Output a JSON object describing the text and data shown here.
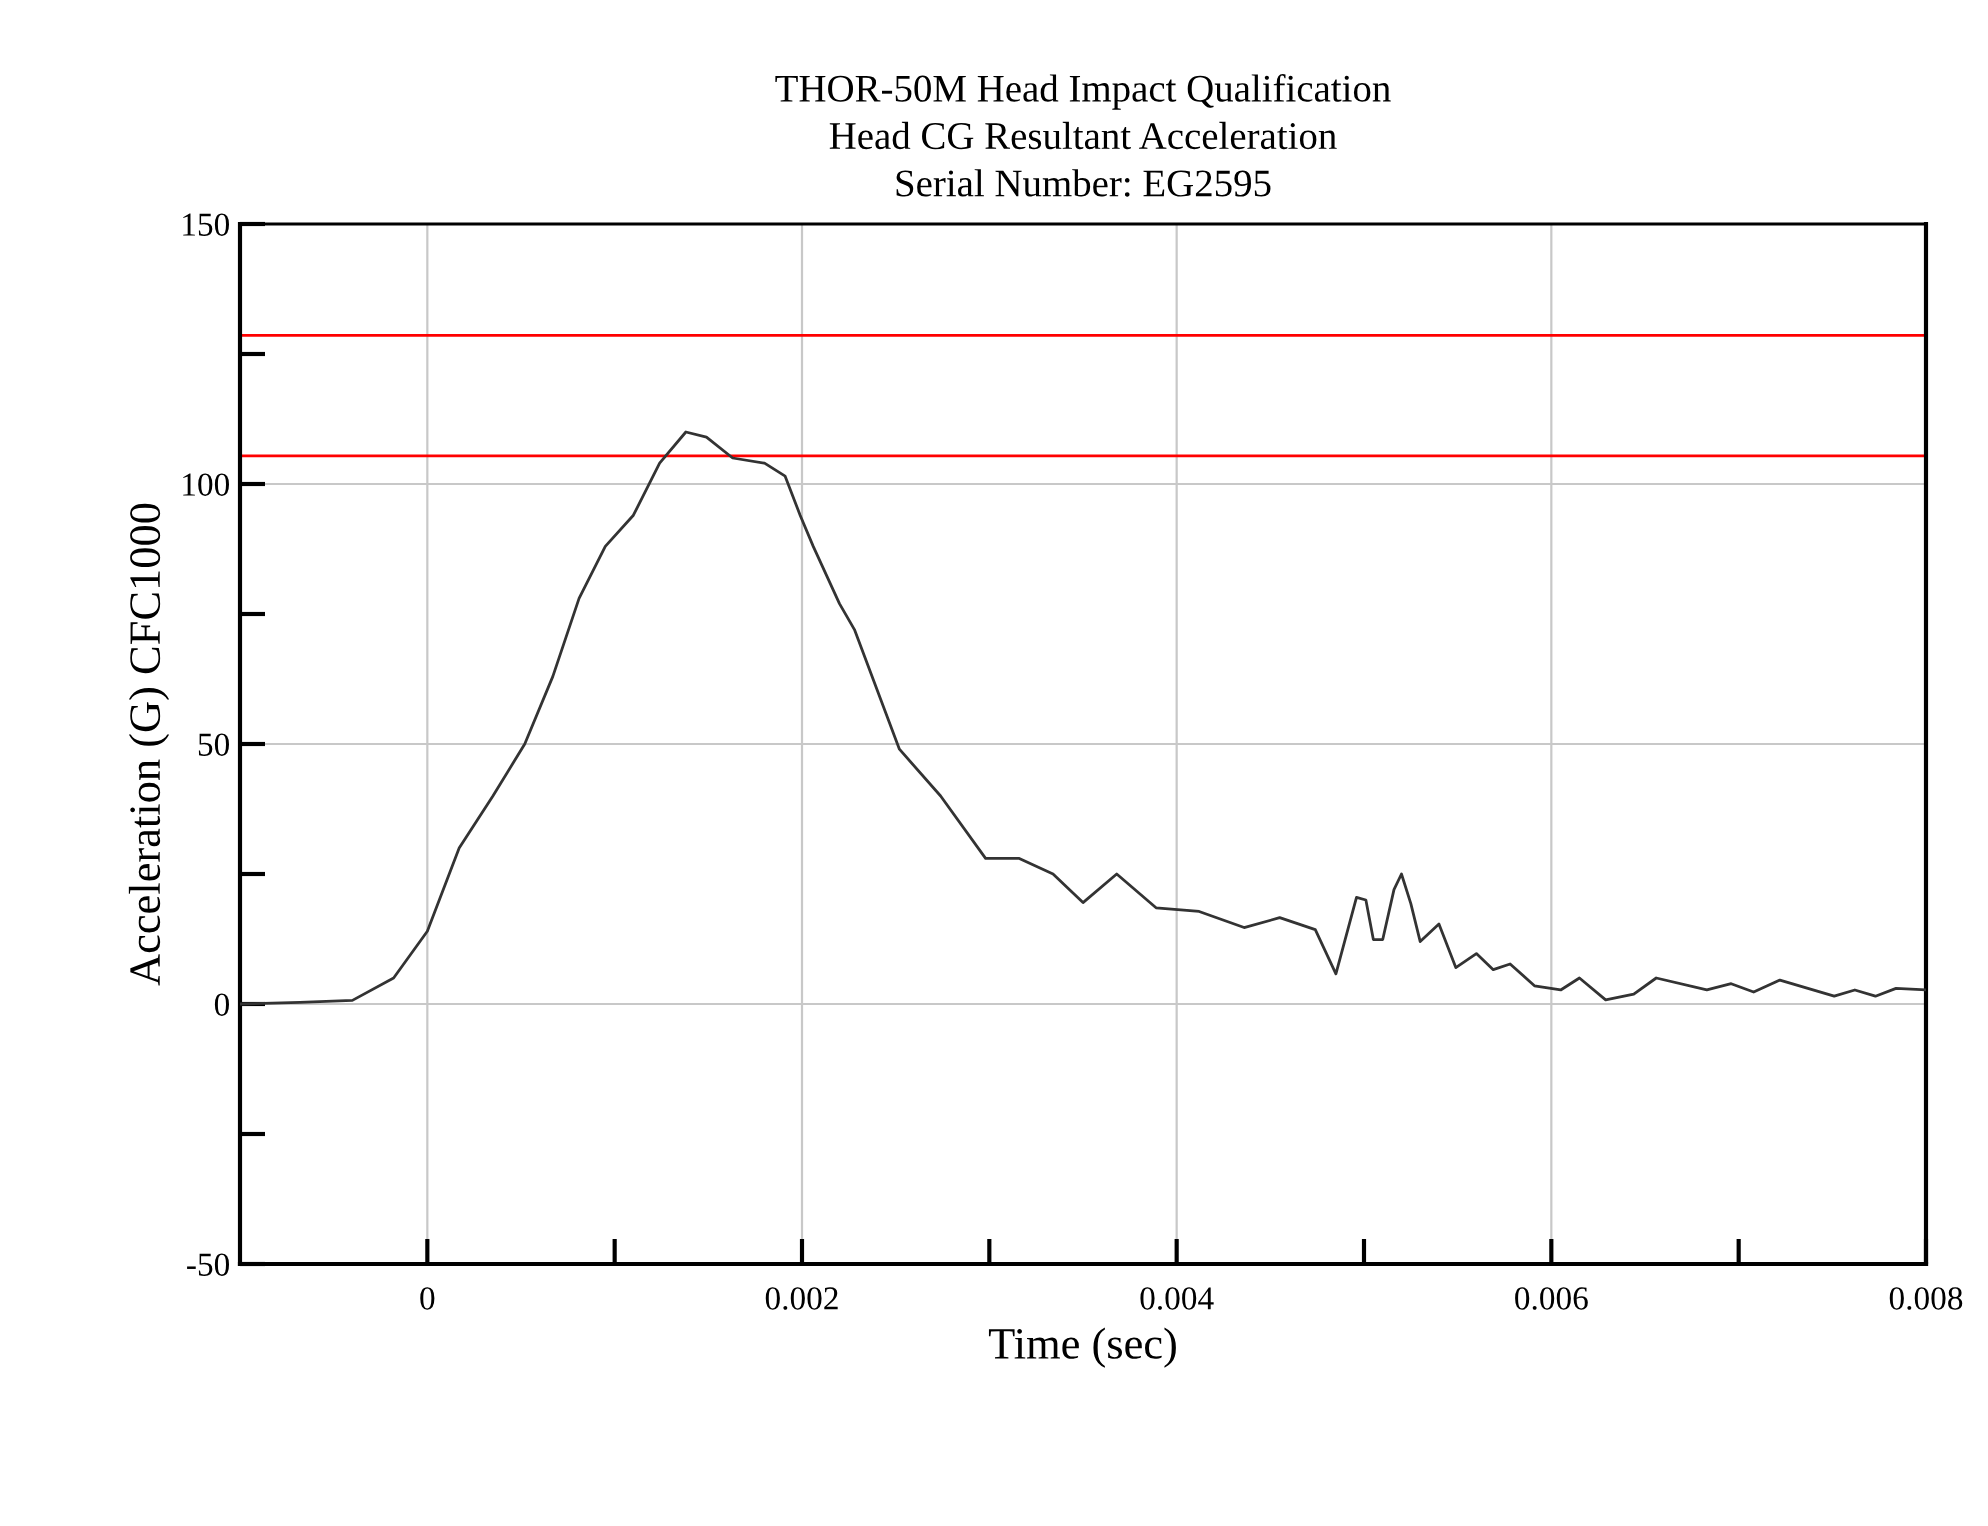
{
  "chart_data": {
    "type": "line",
    "title": "THOR-50M Head Impact Qualification\nHead CG Resultant Acceleration\nSerial Number: EG2595",
    "xlabel": "Time (sec)",
    "ylabel": "Acceleration (G) CFC1000",
    "xlim": [
      -0.001,
      0.008
    ],
    "ylim": [
      -50,
      150
    ],
    "xticks": [
      0,
      {
        "value": 0.001,
        "label": null
      },
      0.002,
      {
        "value": 0.003,
        "label": null
      },
      0.004,
      {
        "value": 0.005,
        "label": null
      },
      0.006,
      {
        "value": 0.007,
        "label": null
      },
      0.008
    ],
    "yticks": [
      -50,
      {
        "value": -25,
        "label": null
      },
      0,
      {
        "value": 25,
        "label": null
      },
      50,
      {
        "value": 75,
        "label": null
      },
      100,
      {
        "value": 125,
        "label": null
      },
      150
    ],
    "grid": true,
    "legend": false,
    "marker": "none",
    "line_style": "solid",
    "ref_lines": [
      {
        "axis": "y",
        "value": 128.6,
        "color": "#ff0000"
      },
      {
        "axis": "y",
        "value": 105.4,
        "color": "#ff0000"
      }
    ],
    "series": [
      {
        "color": "#333333",
        "x": [
          -0.001,
          -0.00068,
          -0.0004,
          -0.00018,
          0,
          0.00017,
          0.00035,
          0.00052,
          0.00067,
          0.00081,
          0.00095,
          0.0011,
          0.00124,
          0.00138,
          0.00149,
          0.00163,
          0.0018,
          0.00191,
          0.00199,
          0.00206,
          0.0022,
          0.00228,
          0.00252,
          0.00274,
          0.00298,
          0.00316,
          0.00334,
          0.0035,
          0.00368,
          0.00389,
          0.00412,
          0.00436,
          0.00455,
          0.00474,
          0.00485,
          0.00496,
          0.00501,
          0.00505,
          0.0051,
          0.00516,
          0.0052,
          0.00525,
          0.0053,
          0.0054,
          0.00549,
          0.0056,
          0.00569,
          0.00578,
          0.00591,
          0.00605,
          0.00615,
          0.00629,
          0.00644,
          0.00656,
          0.00683,
          0.00696,
          0.00708,
          0.00722,
          0.00751,
          0.00762,
          0.00773,
          0.00784,
          0.008
        ],
        "values": [
          0,
          0.3,
          0.7,
          5,
          14,
          30,
          40,
          50,
          63,
          78,
          88,
          94,
          104,
          110,
          109,
          105,
          104,
          101.5,
          94,
          88,
          77,
          72,
          49,
          40,
          28,
          28,
          25,
          19.5,
          25,
          18.5,
          17.8,
          14.7,
          16.6,
          14.3,
          5.8,
          20.5,
          20,
          12.4,
          12.4,
          22,
          25,
          19.3,
          12,
          15.4,
          7,
          9.7,
          6.6,
          7.7,
          3.5,
          2.7,
          5,
          0.8,
          1.9,
          5,
          2.7,
          3.9,
          2.3,
          4.6,
          1.5,
          2.7,
          1.5,
          3,
          2.7
        ]
      }
    ]
  }
}
